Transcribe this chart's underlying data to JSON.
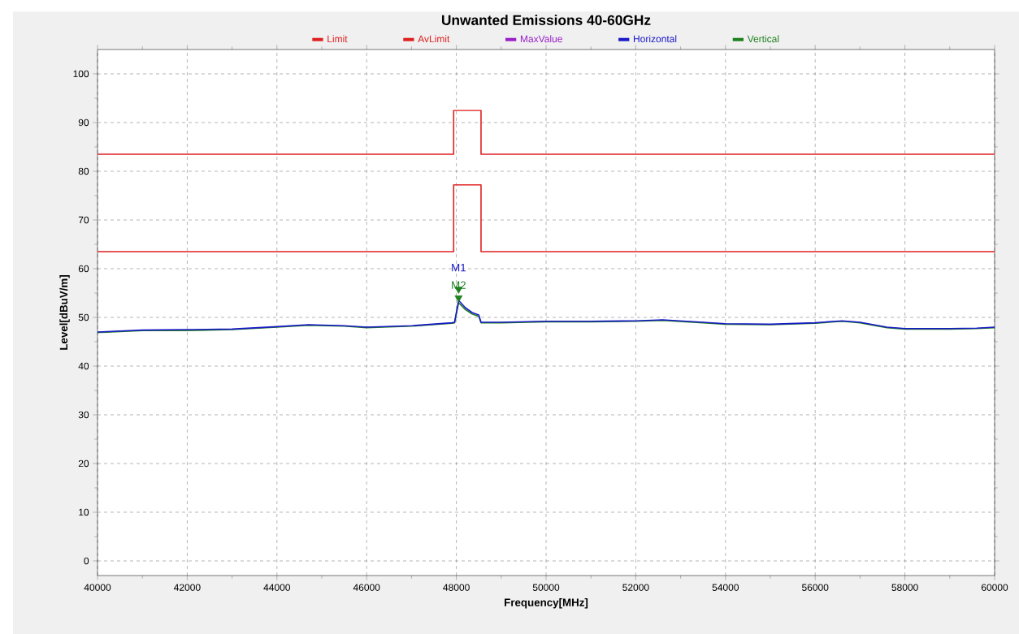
{
  "chart_data": {
    "type": "line",
    "title": "Unwanted Emissions 40-60GHz",
    "xlabel": "Frequency[MHz]",
    "ylabel": "Level[dBuV/m]",
    "xlim": [
      40000,
      60000
    ],
    "ylim": [
      -3,
      105
    ],
    "xticks": [
      40000,
      42000,
      44000,
      46000,
      48000,
      50000,
      52000,
      54000,
      56000,
      58000,
      60000
    ],
    "yticks": [
      0,
      10,
      20,
      30,
      40,
      50,
      60,
      70,
      80,
      90,
      100
    ],
    "grid": true,
    "legend": "top",
    "line_style": "solid",
    "marker": "none",
    "series": [
      {
        "name": "Limit",
        "color": "#e02020",
        "x": [
          40000,
          47940,
          47940,
          48550,
          48550,
          60000
        ],
        "values": [
          83.5,
          83.5,
          92.5,
          92.5,
          83.5,
          83.5
        ]
      },
      {
        "name": "AvLimit",
        "color": "#e02020",
        "x": [
          40000,
          47940,
          47940,
          48550,
          48550,
          60000
        ],
        "values": [
          63.5,
          63.5,
          77.2,
          77.2,
          63.5,
          63.5
        ]
      },
      {
        "name": "MaxValue",
        "color": "#9a20c8"
      },
      {
        "name": "Vertical",
        "color": "#208020",
        "x": [
          40000,
          41000,
          42000,
          43000,
          44000,
          44700,
          45500,
          46000,
          47000,
          47900,
          47960,
          48050,
          48200,
          48350,
          48500,
          48550,
          49000,
          50000,
          51000,
          52000,
          52600,
          53500,
          54000,
          55000,
          56000,
          56600,
          57000,
          57600,
          58000,
          59000,
          59600,
          60000
        ],
        "values": [
          46.9,
          47.3,
          47.3,
          47.5,
          48.0,
          48.4,
          48.2,
          47.9,
          48.2,
          48.8,
          48.9,
          53.0,
          51.6,
          50.7,
          50.2,
          48.9,
          48.9,
          49.1,
          49.1,
          49.2,
          49.4,
          48.9,
          48.6,
          48.5,
          48.8,
          49.2,
          48.9,
          47.9,
          47.6,
          47.6,
          47.7,
          47.9
        ]
      },
      {
        "name": "Horizontal",
        "color": "#1a1ac8",
        "x": [
          40000,
          41000,
          42000,
          43000,
          44000,
          44700,
          45500,
          46000,
          47000,
          47900,
          47960,
          48050,
          48200,
          48350,
          48500,
          48550,
          49000,
          50000,
          51000,
          52000,
          52600,
          53500,
          54000,
          55000,
          56000,
          56600,
          57000,
          57600,
          58000,
          59000,
          59600,
          60000
        ],
        "values": [
          47.0,
          47.4,
          47.5,
          47.6,
          48.1,
          48.5,
          48.3,
          48.0,
          48.3,
          48.9,
          49.0,
          53.5,
          52.0,
          51.0,
          50.5,
          49.0,
          49.0,
          49.2,
          49.2,
          49.3,
          49.5,
          49.0,
          48.7,
          48.6,
          48.9,
          49.3,
          49.0,
          48.0,
          47.7,
          47.7,
          47.8,
          48.0
        ]
      }
    ],
    "annotations": [
      {
        "text": "M1",
        "x": 48050,
        "y": 55.8
      },
      {
        "text": "M2",
        "x": 48050,
        "y": 54.0
      }
    ]
  }
}
